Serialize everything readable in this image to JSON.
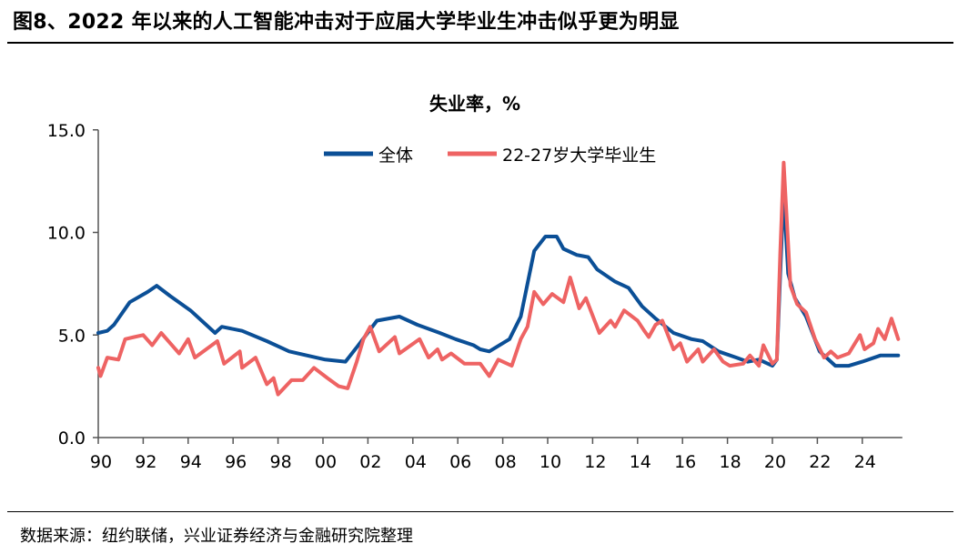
{
  "header": {
    "title": "图8、2022 年以来的人工智能冲击对于应届大学毕业生冲击似乎更为明显"
  },
  "footer": {
    "source": "数据来源：纽约联储，兴业证券经济与金融研究院整理"
  },
  "chart_data": {
    "type": "line",
    "title": "失业率，%",
    "xlabel": "",
    "ylabel": "",
    "ylim": [
      0,
      15
    ],
    "xlim": [
      1990,
      2025.7
    ],
    "yticks": [
      "0.0",
      "5.0",
      "10.0",
      "15.0"
    ],
    "yticks_values": [
      0,
      5,
      10,
      15
    ],
    "xticks": [
      "90",
      "92",
      "94",
      "96",
      "98",
      "00",
      "02",
      "04",
      "06",
      "08",
      "10",
      "12",
      "14",
      "16",
      "18",
      "20",
      "22",
      "24"
    ],
    "xticks_values": [
      1990,
      1992,
      1994,
      1996,
      1998,
      2000,
      2002,
      2004,
      2006,
      2008,
      2010,
      2012,
      2014,
      2016,
      2018,
      2020,
      2022,
      2024
    ],
    "grid": false,
    "legend": "top-center",
    "series": [
      {
        "name": "全体",
        "color": "#0B4F96",
        "x": [
          1990.0,
          1990.4,
          1990.7,
          1991.4,
          1992.2,
          1992.6,
          1993.2,
          1994.1,
          1995.2,
          1995.5,
          1996.4,
          1997.5,
          1998.5,
          2000.1,
          2001.0,
          2001.5,
          2002.4,
          2003.4,
          2004.2,
          2005.2,
          2005.9,
          2006.7,
          2007.0,
          2007.4,
          2008.3,
          2008.8,
          2009.4,
          2009.9,
          2010.4,
          2010.7,
          2011.3,
          2011.8,
          2012.2,
          2013.0,
          2013.6,
          2014.2,
          2014.8,
          2015.6,
          2016.4,
          2016.9,
          2017.6,
          2018.4,
          2018.9,
          2019.4,
          2020.0,
          2020.2,
          2020.35,
          2020.5,
          2020.7,
          2021.0,
          2021.5,
          2022.1,
          2022.8,
          2023.4,
          2024.0,
          2024.8,
          2025.6
        ],
        "y": [
          5.1,
          5.2,
          5.5,
          6.6,
          7.1,
          7.4,
          6.9,
          6.2,
          5.1,
          5.4,
          5.2,
          4.7,
          4.2,
          3.8,
          3.7,
          4.4,
          5.7,
          5.9,
          5.5,
          5.1,
          4.8,
          4.5,
          4.3,
          4.2,
          4.8,
          5.9,
          9.1,
          9.8,
          9.8,
          9.2,
          8.9,
          8.8,
          8.2,
          7.6,
          7.3,
          6.4,
          5.8,
          5.1,
          4.8,
          4.7,
          4.2,
          3.9,
          3.7,
          3.8,
          3.5,
          3.8,
          8.0,
          12.0,
          8.0,
          6.8,
          5.9,
          4.2,
          3.5,
          3.5,
          3.7,
          4.0,
          4.0
        ]
      },
      {
        "name": "22-27岁大学毕业生",
        "color": "#EE6363",
        "x": [
          1990.0,
          1990.1,
          1990.4,
          1990.9,
          1991.2,
          1991.6,
          1992.0,
          1992.4,
          1992.8,
          1993.6,
          1994.0,
          1994.3,
          1995.3,
          1995.6,
          1996.3,
          1996.4,
          1997.0,
          1997.5,
          1997.8,
          1998.0,
          1998.6,
          1999.1,
          1999.6,
          2000.2,
          2000.7,
          2001.1,
          2001.5,
          2001.8,
          2002.1,
          2002.5,
          2003.2,
          2003.4,
          2004.3,
          2004.7,
          2005.1,
          2005.3,
          2005.7,
          2006.3,
          2007.0,
          2007.4,
          2007.8,
          2008.4,
          2008.8,
          2009.1,
          2009.4,
          2009.8,
          2010.2,
          2010.7,
          2011.0,
          2011.4,
          2011.7,
          2012.3,
          2012.8,
          2013.0,
          2013.4,
          2014.0,
          2014.3,
          2014.5,
          2014.8,
          2015.1,
          2015.6,
          2015.9,
          2016.2,
          2016.7,
          2016.9,
          2017.4,
          2017.8,
          2018.1,
          2018.7,
          2019.0,
          2019.4,
          2019.6,
          2020.0,
          2020.2,
          2020.35,
          2020.5,
          2020.8,
          2021.1,
          2021.5,
          2021.9,
          2022.3,
          2022.6,
          2022.9,
          2023.4,
          2023.9,
          2024.1,
          2024.5,
          2024.7,
          2025.0,
          2025.3,
          2025.6
        ],
        "y": [
          3.4,
          3.0,
          3.9,
          3.8,
          4.8,
          4.9,
          5.0,
          4.5,
          5.1,
          4.1,
          4.8,
          3.9,
          4.7,
          3.6,
          4.2,
          3.4,
          3.9,
          2.6,
          2.9,
          2.1,
          2.8,
          2.8,
          3.4,
          2.9,
          2.5,
          2.4,
          3.7,
          4.8,
          5.4,
          4.2,
          4.9,
          4.1,
          4.8,
          3.9,
          4.3,
          3.8,
          4.1,
          3.6,
          3.6,
          3.0,
          3.8,
          3.5,
          4.8,
          5.4,
          7.1,
          6.5,
          7.0,
          6.6,
          7.8,
          6.3,
          6.8,
          5.1,
          5.7,
          5.4,
          6.2,
          5.7,
          5.2,
          4.9,
          5.5,
          5.7,
          4.3,
          4.6,
          3.7,
          4.3,
          3.7,
          4.3,
          3.7,
          3.5,
          3.6,
          4.0,
          3.5,
          4.5,
          3.6,
          3.8,
          9.0,
          13.4,
          7.4,
          6.5,
          6.1,
          4.8,
          3.9,
          4.2,
          3.9,
          4.1,
          5.0,
          4.3,
          4.6,
          5.3,
          4.8,
          5.8,
          4.8
        ]
      }
    ]
  }
}
